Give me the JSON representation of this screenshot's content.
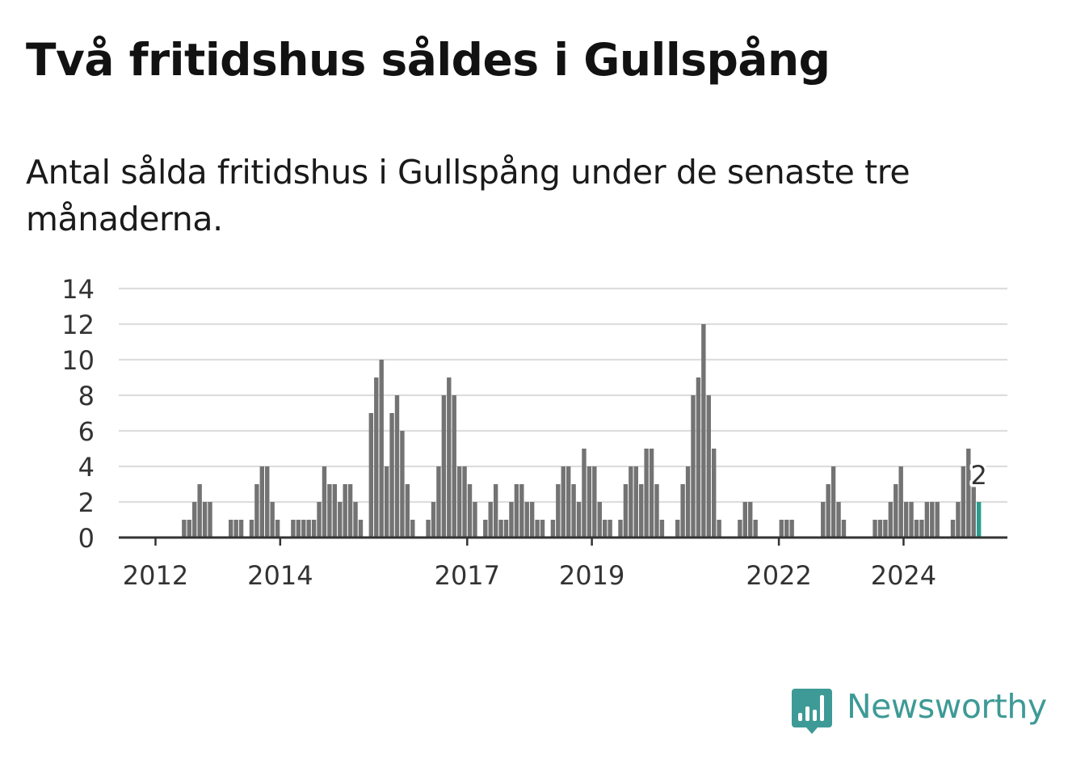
{
  "title": "Två fritidshus såldes i Gullspång",
  "subtitle": "Antal sålda fritidshus i Gullspång under de senaste tre månaderna.",
  "logo": {
    "text": "Newsworthy",
    "icon": "newsworthy-bar-chart-icon"
  },
  "colors": {
    "bar": "#737373",
    "highlight": "#2a9d8f",
    "grid": "#dddddd",
    "axis": "#333333",
    "brand": "#3e9a96"
  },
  "chart_data": {
    "type": "bar",
    "title": "Två fritidshus såldes i Gullspång",
    "subtitle": "Antal sålda fritidshus i Gullspång under de senaste tre månaderna.",
    "xlabel": "",
    "ylabel": "",
    "ylim": [
      0,
      14
    ],
    "yticks": [
      0,
      2,
      4,
      6,
      8,
      10,
      12,
      14
    ],
    "grid": true,
    "period": "month",
    "first_period": "2011-06",
    "x_tick_labels": [
      {
        "label": "2012",
        "period": "2012-01"
      },
      {
        "label": "2014",
        "period": "2014-01"
      },
      {
        "label": "2017",
        "period": "2017-01"
      },
      {
        "label": "2019",
        "period": "2019-01"
      },
      {
        "label": "2022",
        "period": "2022-01"
      },
      {
        "label": "2024",
        "period": "2024-01"
      }
    ],
    "values": [
      0,
      0,
      0,
      0,
      0,
      0,
      0,
      0,
      0,
      0,
      0,
      0,
      1,
      1,
      2,
      3,
      2,
      2,
      0,
      0,
      0,
      1,
      1,
      1,
      0,
      1,
      3,
      4,
      4,
      2,
      1,
      0,
      0,
      1,
      1,
      1,
      1,
      1,
      2,
      4,
      3,
      3,
      2,
      3,
      3,
      2,
      1,
      0,
      7,
      9,
      10,
      4,
      7,
      8,
      6,
      3,
      1,
      0,
      0,
      1,
      2,
      4,
      8,
      9,
      8,
      4,
      4,
      3,
      2,
      0,
      1,
      2,
      3,
      1,
      1,
      2,
      3,
      3,
      2,
      2,
      1,
      1,
      0,
      1,
      3,
      4,
      4,
      3,
      2,
      5,
      4,
      4,
      2,
      1,
      1,
      0,
      1,
      3,
      4,
      4,
      3,
      5,
      5,
      3,
      1,
      0,
      0,
      1,
      3,
      4,
      8,
      9,
      12,
      8,
      5,
      1,
      0,
      0,
      0,
      1,
      2,
      2,
      1,
      0,
      0,
      0,
      0,
      1,
      1,
      1,
      0,
      0,
      0,
      0,
      0,
      2,
      3,
      4,
      2,
      1,
      0,
      0,
      0,
      0,
      0,
      1,
      1,
      1,
      2,
      3,
      4,
      2,
      2,
      1,
      1,
      2,
      2,
      2,
      0,
      0,
      1,
      2,
      4,
      5,
      3,
      2
    ],
    "highlight_last": true,
    "annotation": {
      "label": "2",
      "value": 2
    }
  }
}
